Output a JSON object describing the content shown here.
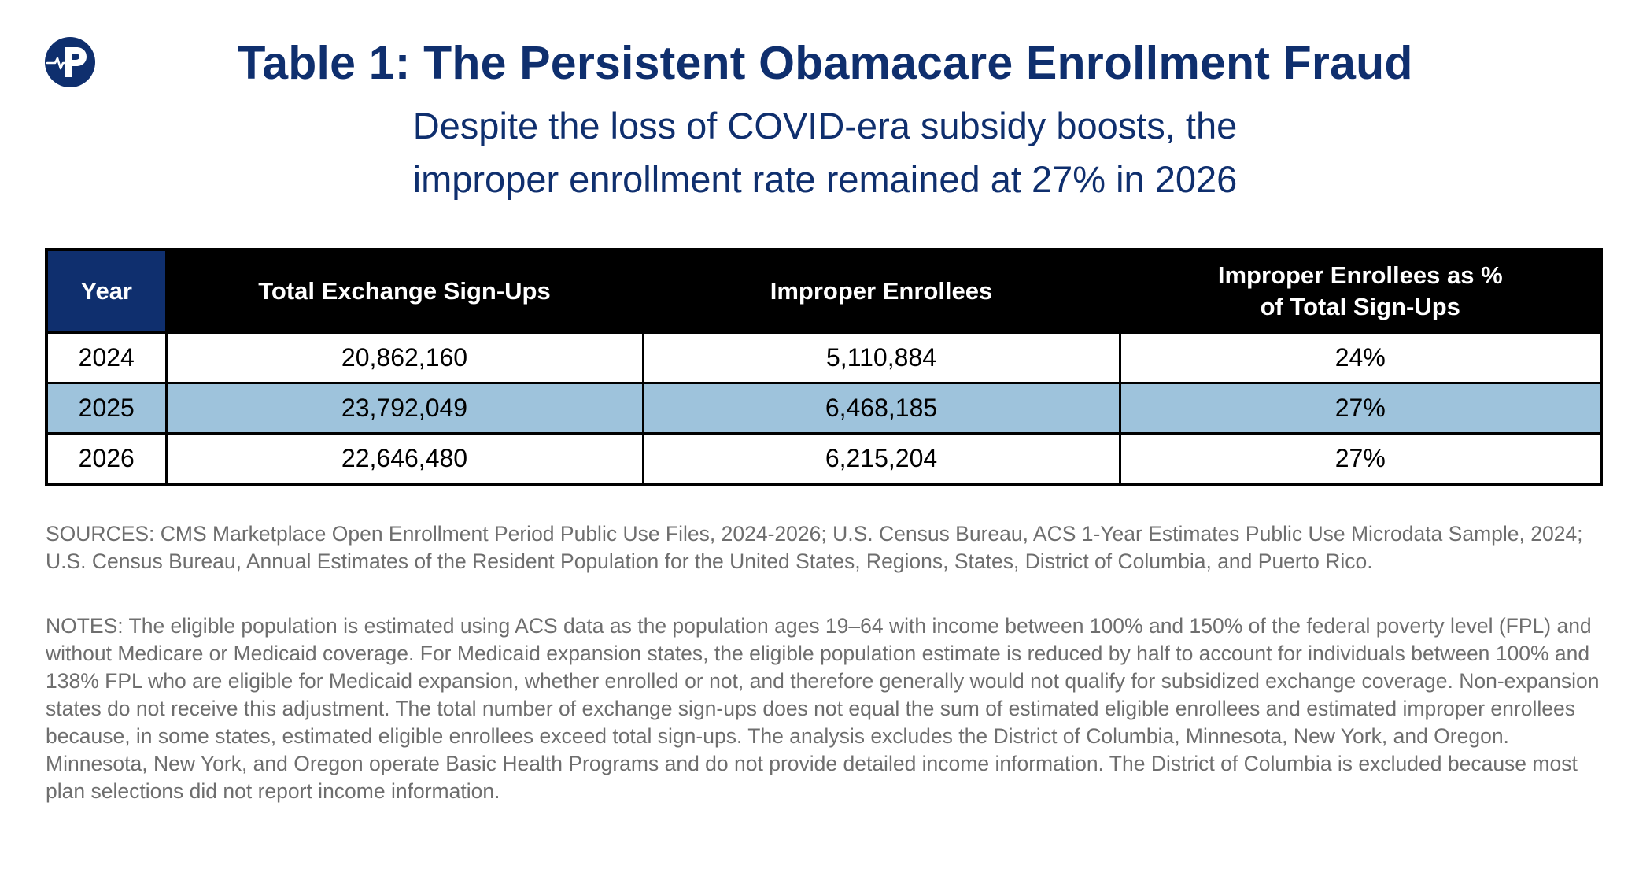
{
  "header": {
    "logo_icon": "paragon-heartbeat-logo-icon",
    "title": "Table 1: The Persistent Obamacare Enrollment Fraud",
    "subtitle_lines": [
      "Despite the loss of COVID-era subsidy boosts, the",
      "improper enrollment rate remained at 27% in 2026"
    ]
  },
  "colors": {
    "title": "#0f2f6e",
    "header_bg": "#000000",
    "year_header_bg": "#0f2f6e",
    "highlight_row": "#9ec3dc",
    "notes_text": "#6e6e6e"
  },
  "chart_data": {
    "type": "table",
    "title": "Table 1: The Persistent Obamacare Enrollment Fraud",
    "subtitle": "Despite the loss of COVID-era subsidy boosts, the improper enrollment rate remained at 27% in 2026",
    "columns": [
      "Year",
      "Total Exchange Sign-Ups",
      "Improper Enrollees",
      "Improper Enrollees as % of Total Sign-Ups"
    ],
    "column_header_lines": {
      "percent": [
        "Improper Enrollees as %",
        "of Total Sign-Ups"
      ]
    },
    "rows": [
      {
        "year": "2024",
        "total": "20,862,160",
        "improper": "5,110,884",
        "percent": "24%",
        "highlight": false
      },
      {
        "year": "2025",
        "total": "23,792,049",
        "improper": "6,468,185",
        "percent": "27%",
        "highlight": true
      },
      {
        "year": "2026",
        "total": "22,646,480",
        "improper": "6,215,204",
        "percent": "27%",
        "highlight": false
      }
    ]
  },
  "footer": {
    "sources": "SOURCES: CMS Marketplace Open Enrollment Period Public Use Files, 2024-2026; U.S. Census Bureau, ACS 1-Year Estimates Public Use Microdata Sample, 2024; U.S. Census Bureau, Annual Estimates of the Resident Population for the United States, Regions, States, District of Columbia, and Puerto Rico.",
    "notes": "NOTES: The eligible population is estimated using ACS data as the population ages 19–64 with income between 100% and 150% of the federal poverty level (FPL) and without Medicare or Medicaid coverage. For Medicaid expansion states, the eligible population estimate is reduced by half to account for individuals between 100% and 138% FPL who are eligible for Medicaid expansion, whether enrolled or not, and therefore generally would not qualify for subsidized exchange coverage. Non-expansion states do not receive this adjustment. The total number of exchange sign-ups does not equal the sum of estimated eligible enrollees and estimated improper enrollees because, in some states, estimated eligible enrollees exceed total sign-ups. The analysis excludes the District of Columbia, Minnesota, New York, and Oregon. Minnesota, New York, and Oregon operate Basic Health Programs and do not provide detailed income information. The District of Columbia is excluded because most plan selections did not report income information."
  }
}
